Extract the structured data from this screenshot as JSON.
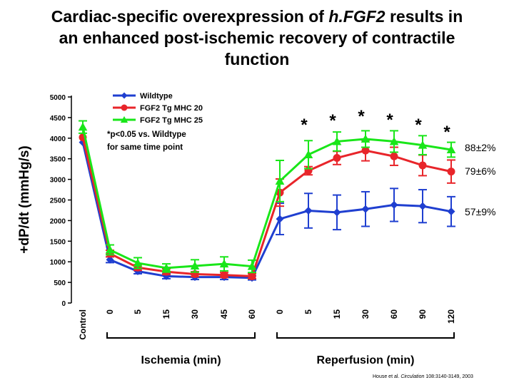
{
  "title": {
    "line1_pre": "Cardiac-specific overexpression of ",
    "line1_italic": "h.FGF2",
    "line1_post": " results in",
    "line2": "an enhanced post-ischemic recovery of contractile",
    "line3": "function"
  },
  "chart_data": {
    "type": "line",
    "title": "Cardiac-specific overexpression of h.FGF2 results in an enhanced post-ischemic recovery of contractile function",
    "ylabel": "+dP/dt (mmHg/s)",
    "ylim": [
      0,
      5000
    ],
    "yticks": [
      "0",
      "500",
      "1000",
      "1500",
      "2000",
      "2500",
      "3000",
      "3500",
      "4000",
      "4500",
      "5000"
    ],
    "categories": [
      "Control",
      "0",
      "5",
      "15",
      "30",
      "45",
      "60",
      "0",
      "5",
      "15",
      "30",
      "60",
      "90",
      "120"
    ],
    "groups": [
      {
        "label": "Ischemia (min)",
        "start": 1,
        "end": 6
      },
      {
        "label": "Reperfusion (min)",
        "start": 7,
        "end": 13
      }
    ],
    "series": [
      {
        "name": "Wildtype",
        "color": "#1f3fd0",
        "marker": "diamond",
        "values": [
          3900,
          1050,
          770,
          650,
          630,
          630,
          610,
          2040,
          2240,
          2200,
          2280,
          2380,
          2350,
          2220
        ],
        "errors": [
          0,
          70,
          60,
          60,
          60,
          60,
          50,
          380,
          420,
          420,
          420,
          400,
          400,
          360
        ]
      },
      {
        "name": "FGF2 Tg MHC 20",
        "color": "#e8252a",
        "marker": "circle",
        "values": [
          4020,
          1200,
          860,
          760,
          700,
          680,
          650,
          2680,
          3210,
          3520,
          3700,
          3560,
          3340,
          3190
        ],
        "errors": [
          0,
          80,
          70,
          70,
          60,
          60,
          60,
          330,
          100,
          160,
          250,
          220,
          250,
          280
        ]
      },
      {
        "name": "FGF2 Tg MHC 25",
        "color": "#19e619",
        "marker": "triangle",
        "values": [
          4270,
          1290,
          970,
          850,
          900,
          950,
          890,
          2960,
          3600,
          3920,
          3980,
          3920,
          3830,
          3720
        ],
        "errors": [
          150,
          120,
          130,
          100,
          150,
          170,
          150,
          500,
          340,
          230,
          200,
          260,
          230,
          180
        ]
      }
    ],
    "significance_marker": "*",
    "significant_points": [
      8,
      9,
      10,
      11,
      12,
      13
    ],
    "annotations": [
      "88±2%",
      "79±6%",
      "57±9%"
    ],
    "legend_note": [
      "*p<0.05 vs. Wildtype",
      "for same time point"
    ],
    "legend_position": "top-left"
  },
  "citation": {
    "pre": "House et al. ",
    "italic": "Circulation",
    "post": " 108:3140-3149, 2003"
  }
}
